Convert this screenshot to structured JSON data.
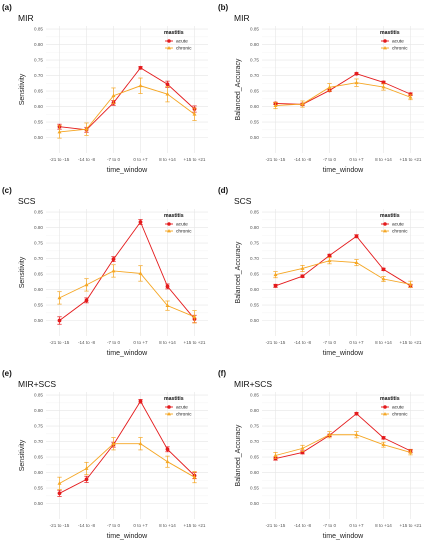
{
  "colors": {
    "acute": "#e41a1c",
    "chronic": "#f5a623"
  },
  "chart_data": [
    {
      "letter": "(a)",
      "title": "MIR",
      "type": "line",
      "xlabel": "time_window",
      "ylabel": "Sensitivity",
      "categories": [
        "-21 to -15",
        "-14 to -8",
        "-7 to 0",
        "0 to +7",
        "8 to +14",
        "+15 to +21"
      ],
      "ylim": [
        0.45,
        0.86
      ],
      "yticks": [
        "0.50",
        "0.55",
        "0.60",
        "0.65",
        "0.70",
        "0.75",
        "0.80",
        "0.85"
      ],
      "legend_title": "mastitis",
      "series": [
        {
          "name": "acute",
          "values": [
            0.535,
            0.525,
            0.612,
            0.725,
            0.672,
            0.592
          ],
          "errors": [
            0.008,
            0.008,
            0.008,
            0.004,
            0.01,
            0.01
          ]
        },
        {
          "name": "chronic",
          "values": [
            0.518,
            0.527,
            0.635,
            0.667,
            0.64,
            0.575
          ],
          "errors": [
            0.02,
            0.02,
            0.025,
            0.025,
            0.025,
            0.02
          ]
        }
      ]
    },
    {
      "letter": "(b)",
      "title": "MIR",
      "type": "line",
      "xlabel": "time_window",
      "ylabel": "Balanced_Accuracy",
      "categories": [
        "-21 to -15",
        "-14 to -8",
        "-7 to 0",
        "0 to +7",
        "8 to +14",
        "+15 to +21"
      ],
      "ylim": [
        0.45,
        0.86
      ],
      "yticks": [
        "0.50",
        "0.55",
        "0.60",
        "0.65",
        "0.70",
        "0.75",
        "0.80",
        "0.85"
      ],
      "legend_title": "mastitis",
      "series": [
        {
          "name": "acute",
          "values": [
            0.61,
            0.607,
            0.652,
            0.706,
            0.678,
            0.64
          ],
          "errors": [
            0.004,
            0.004,
            0.004,
            0.003,
            0.004,
            0.004
          ]
        },
        {
          "name": "chronic",
          "values": [
            0.603,
            0.608,
            0.662,
            0.677,
            0.663,
            0.63
          ],
          "errors": [
            0.01,
            0.01,
            0.012,
            0.012,
            0.01,
            0.008
          ]
        }
      ]
    },
    {
      "letter": "(c)",
      "title": "SCS",
      "type": "line",
      "xlabel": "time_window",
      "ylabel": "Sensitivity",
      "categories": [
        "-21 to -15",
        "-14 to -8",
        "-7 to 0",
        "0 to +7",
        "8 to +14",
        "+15 to +21"
      ],
      "ylim": [
        0.45,
        0.86
      ],
      "yticks": [
        "0.50",
        "0.55",
        "0.60",
        "0.65",
        "0.70",
        "0.75",
        "0.80",
        "0.85"
      ],
      "legend_title": "mastitis",
      "series": [
        {
          "name": "acute",
          "values": [
            0.5,
            0.565,
            0.698,
            0.818,
            0.61,
            0.505
          ],
          "errors": [
            0.012,
            0.008,
            0.008,
            0.008,
            0.008,
            0.012
          ]
        },
        {
          "name": "chronic",
          "values": [
            0.573,
            0.615,
            0.66,
            0.652,
            0.548,
            0.512
          ],
          "errors": [
            0.02,
            0.02,
            0.02,
            0.025,
            0.015,
            0.02
          ]
        }
      ]
    },
    {
      "letter": "(d)",
      "title": "SCS",
      "type": "line",
      "xlabel": "time_window",
      "ylabel": "Balanced_Accuracy",
      "categories": [
        "-21 to -15",
        "-14 to -8",
        "-7 to 0",
        "0 to +7",
        "8 to +14",
        "+15 to +21"
      ],
      "ylim": [
        0.45,
        0.86
      ],
      "yticks": [
        "0.50",
        "0.55",
        "0.60",
        "0.65",
        "0.70",
        "0.75",
        "0.80",
        "0.85"
      ],
      "legend_title": "mastitis",
      "series": [
        {
          "name": "acute",
          "values": [
            0.612,
            0.643,
            0.71,
            0.772,
            0.665,
            0.612
          ],
          "errors": [
            0.005,
            0.004,
            0.004,
            0.005,
            0.004,
            0.005
          ]
        },
        {
          "name": "chronic",
          "values": [
            0.648,
            0.668,
            0.693,
            0.687,
            0.634,
            0.617
          ],
          "errors": [
            0.01,
            0.01,
            0.01,
            0.01,
            0.008,
            0.01
          ]
        }
      ]
    },
    {
      "letter": "(e)",
      "title": "MIR+SCS",
      "type": "line",
      "xlabel": "time_window",
      "ylabel": "Sensitivity",
      "categories": [
        "-21 to -15",
        "-14 to -8",
        "-7 to 0",
        "0 to +7",
        "8 to +14",
        "+15 to +21"
      ],
      "ylim": [
        0.45,
        0.86
      ],
      "yticks": [
        "0.50",
        "0.55",
        "0.60",
        "0.65",
        "0.70",
        "0.75",
        "0.80",
        "0.85"
      ],
      "legend_title": "mastitis",
      "series": [
        {
          "name": "acute",
          "values": [
            0.533,
            0.578,
            0.69,
            0.83,
            0.675,
            0.59
          ],
          "errors": [
            0.01,
            0.01,
            0.008,
            0.006,
            0.008,
            0.01
          ]
        },
        {
          "name": "chronic",
          "values": [
            0.565,
            0.613,
            0.693,
            0.693,
            0.635,
            0.585
          ],
          "errors": [
            0.02,
            0.02,
            0.02,
            0.02,
            0.018,
            0.018
          ]
        }
      ]
    },
    {
      "letter": "(f)",
      "title": "MIR+SCS",
      "type": "line",
      "xlabel": "time_window",
      "ylabel": "Balanced_Accuracy",
      "categories": [
        "-21 to -15",
        "-14 to -8",
        "-7 to 0",
        "0 to +7",
        "8 to +14",
        "+15 to +21"
      ],
      "ylim": [
        0.45,
        0.86
      ],
      "yticks": [
        "0.50",
        "0.55",
        "0.60",
        "0.65",
        "0.70",
        "0.75",
        "0.80",
        "0.85"
      ],
      "legend_title": "mastitis",
      "series": [
        {
          "name": "acute",
          "values": [
            0.645,
            0.665,
            0.72,
            0.79,
            0.712,
            0.67
          ],
          "errors": [
            0.005,
            0.005,
            0.004,
            0.004,
            0.004,
            0.005
          ]
        },
        {
          "name": "chronic",
          "values": [
            0.655,
            0.678,
            0.722,
            0.722,
            0.69,
            0.665
          ],
          "errors": [
            0.01,
            0.01,
            0.01,
            0.01,
            0.008,
            0.008
          ]
        }
      ]
    }
  ]
}
